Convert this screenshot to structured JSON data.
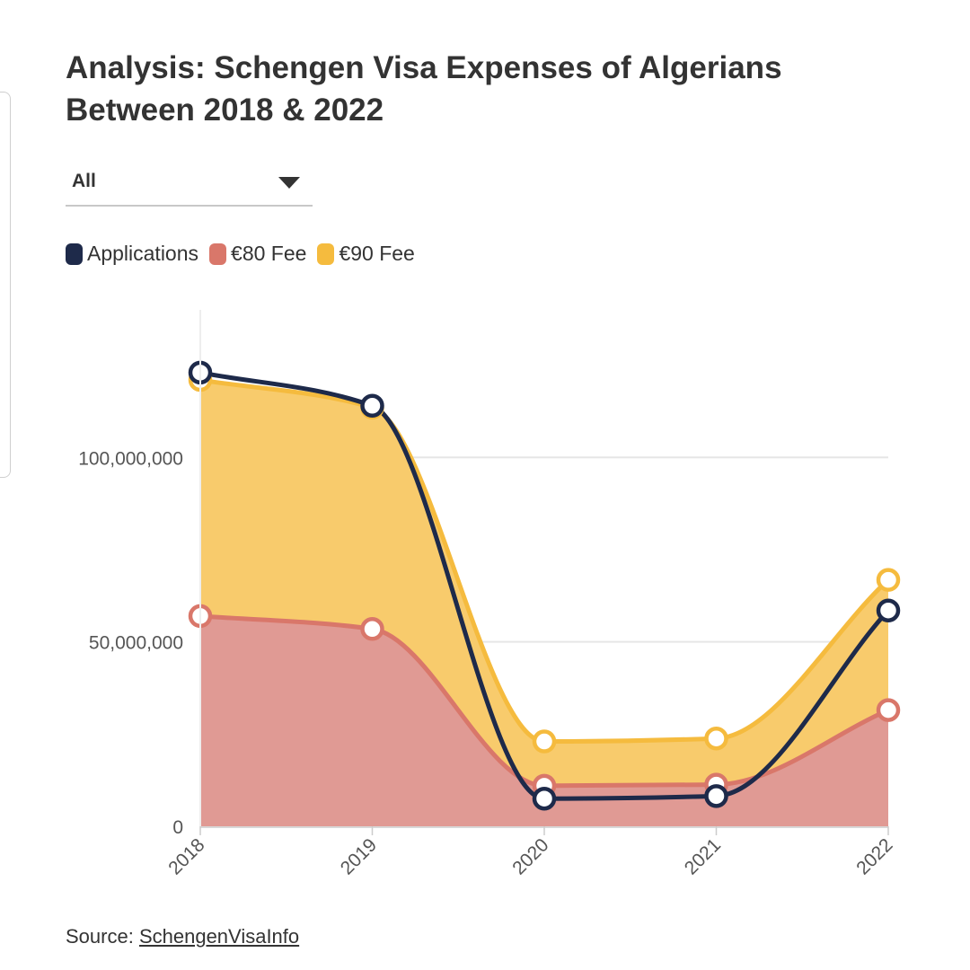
{
  "title": "Analysis: Schengen Visa Expenses of Algerians Between 2018 & 2022",
  "filter": {
    "selected": "All"
  },
  "legend": [
    {
      "label": "Applications",
      "color": "#1e2a4a"
    },
    {
      "label": "€80 Fee",
      "color": "#d9776a"
    },
    {
      "label": "€90 Fee",
      "color": "#f5bb3e"
    }
  ],
  "source": {
    "prefix": "Source:",
    "link_text": "SchengenVisaInfo"
  },
  "chart_data": {
    "type": "area",
    "categories": [
      "2018",
      "2019",
      "2020",
      "2021",
      "2022"
    ],
    "series": [
      {
        "name": "€80 Fee",
        "values": [
          57000000,
          53500000,
          11000000,
          11300000,
          31500000
        ],
        "color": "#d9776a",
        "fill": "#e09a94",
        "stacked": true
      },
      {
        "name": "€90 Fee",
        "values": [
          121000000,
          113500000,
          23000000,
          23800000,
          66800000
        ],
        "color": "#f5bb3e",
        "fill": "#f8cb6c",
        "stacked": true
      },
      {
        "name": "Applications",
        "values": [
          123000000,
          114000000,
          7500000,
          8200000,
          58500000
        ],
        "color": "#1e2a4a",
        "type": "line"
      }
    ],
    "y_ticks": [
      0,
      50000000,
      100000000
    ],
    "y_tick_labels": [
      "0",
      "50,000,000",
      "100,000,000"
    ],
    "ylim": [
      0,
      140000000
    ],
    "grid": true
  }
}
